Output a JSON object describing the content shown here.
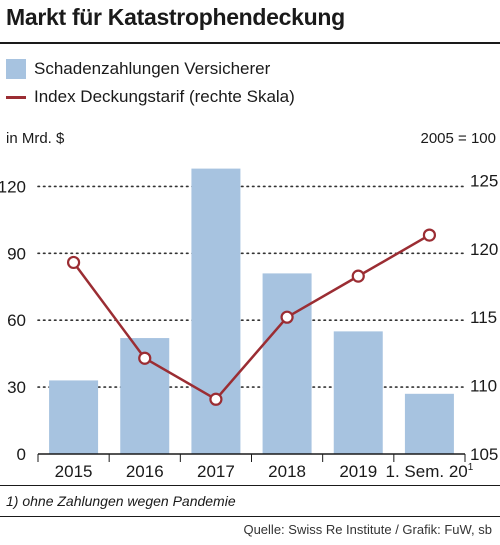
{
  "header": {
    "title": "Markt für Katastrophendeckung"
  },
  "legend": {
    "bar_label": "Schadenzahlungen Versicherer",
    "line_label": "Index Deckungstarif (rechte Skala)"
  },
  "units": {
    "left": "in Mrd. $",
    "right": "2005 = 100"
  },
  "footnote": "1) ohne Zahlungen wegen Pandemie",
  "source": "Quelle: Swiss Re Institute / Grafik: FuW, sb",
  "chart_data": {
    "type": "bar",
    "categories": [
      "2015",
      "2016",
      "2017",
      "2018",
      "2019",
      "1. Sem. 20"
    ],
    "category_superscript": {
      "index": 5,
      "text": "1"
    },
    "series": [
      {
        "name": "Schadenzahlungen Versicherer",
        "type": "bar",
        "axis": "left",
        "color": "#a7c3e0",
        "values": [
          33,
          52,
          128,
          81,
          55,
          27
        ]
      },
      {
        "name": "Index Deckungstarif (rechte Skala)",
        "type": "line",
        "axis": "right",
        "color": "#9b2d33",
        "values": [
          119,
          112,
          109,
          115,
          118,
          121
        ]
      }
    ],
    "y_left": {
      "ylim": [
        0,
        135
      ],
      "ticks": [
        "0",
        "30",
        "60",
        "90",
        "120"
      ]
    },
    "y_right": {
      "ylim": [
        105,
        127
      ],
      "ticks": [
        "105",
        "110",
        "115",
        "120",
        "125"
      ]
    },
    "grid": "dotted horizontal",
    "legend_position": "top"
  }
}
